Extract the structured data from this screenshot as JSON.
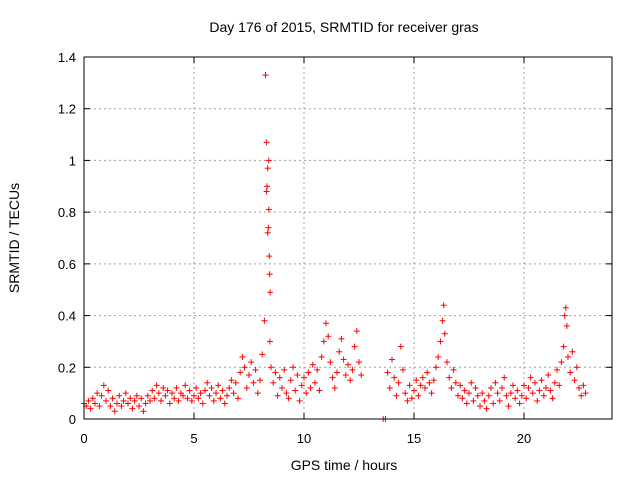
{
  "chart_data": {
    "type": "scatter",
    "title": "Day 176 of 2015, SRMTID for receiver gras",
    "xlabel": "GPS time / hours",
    "ylabel": "SRMTID / TECUs",
    "xlim": [
      0,
      24
    ],
    "ylim": [
      0,
      1.4
    ],
    "x_ticks": [
      0,
      5,
      10,
      15,
      20
    ],
    "x_tick_labels": [
      "0",
      "5",
      "10",
      "15",
      "20"
    ],
    "y_ticks": [
      0,
      0.2,
      0.4,
      0.6,
      0.8,
      1.0,
      1.2,
      1.4
    ],
    "y_tick_labels": [
      "0",
      "0.2",
      "0.4",
      "0.6",
      "0.8",
      "1",
      "1.2",
      "1.4"
    ],
    "grid": true,
    "marker": "+",
    "series": [
      {
        "name": "SRMTID",
        "color": "#ff0000",
        "points": [
          [
            0.0,
            0.06
          ],
          [
            0.1,
            0.05
          ],
          [
            0.2,
            0.07
          ],
          [
            0.3,
            0.04
          ],
          [
            0.4,
            0.08
          ],
          [
            0.5,
            0.06
          ],
          [
            0.6,
            0.1
          ],
          [
            0.7,
            0.05
          ],
          [
            0.8,
            0.09
          ],
          [
            0.9,
            0.13
          ],
          [
            1.0,
            0.07
          ],
          [
            1.1,
            0.11
          ],
          [
            1.2,
            0.05
          ],
          [
            1.3,
            0.08
          ],
          [
            1.4,
            0.03
          ],
          [
            1.5,
            0.06
          ],
          [
            1.6,
            0.09
          ],
          [
            1.7,
            0.05
          ],
          [
            1.8,
            0.07
          ],
          [
            1.9,
            0.1
          ],
          [
            2.0,
            0.06
          ],
          [
            2.1,
            0.08
          ],
          [
            2.2,
            0.04
          ],
          [
            2.3,
            0.07
          ],
          [
            2.4,
            0.09
          ],
          [
            2.5,
            0.05
          ],
          [
            2.6,
            0.08
          ],
          [
            2.7,
            0.03
          ],
          [
            2.8,
            0.06
          ],
          [
            2.9,
            0.09
          ],
          [
            3.0,
            0.07
          ],
          [
            3.1,
            0.11
          ],
          [
            3.2,
            0.08
          ],
          [
            3.3,
            0.13
          ],
          [
            3.4,
            0.1
          ],
          [
            3.5,
            0.07
          ],
          [
            3.6,
            0.12
          ],
          [
            3.7,
            0.09
          ],
          [
            3.8,
            0.11
          ],
          [
            3.9,
            0.06
          ],
          [
            4.0,
            0.1
          ],
          [
            4.1,
            0.08
          ],
          [
            4.2,
            0.12
          ],
          [
            4.3,
            0.07
          ],
          [
            4.4,
            0.1
          ],
          [
            4.5,
            0.09
          ],
          [
            4.6,
            0.13
          ],
          [
            4.7,
            0.08
          ],
          [
            4.8,
            0.11
          ],
          [
            4.9,
            0.07
          ],
          [
            5.0,
            0.09
          ],
          [
            5.1,
            0.12
          ],
          [
            5.2,
            0.08
          ],
          [
            5.3,
            0.1
          ],
          [
            5.4,
            0.06
          ],
          [
            5.5,
            0.11
          ],
          [
            5.6,
            0.14
          ],
          [
            5.7,
            0.09
          ],
          [
            5.8,
            0.12
          ],
          [
            5.9,
            0.07
          ],
          [
            6.0,
            0.1
          ],
          [
            6.1,
            0.13
          ],
          [
            6.2,
            0.08
          ],
          [
            6.3,
            0.11
          ],
          [
            6.4,
            0.06
          ],
          [
            6.5,
            0.09
          ],
          [
            6.6,
            0.12
          ],
          [
            6.7,
            0.15
          ],
          [
            6.8,
            0.1
          ],
          [
            6.9,
            0.14
          ],
          [
            7.0,
            0.08
          ],
          [
            7.1,
            0.18
          ],
          [
            7.2,
            0.24
          ],
          [
            7.3,
            0.2
          ],
          [
            7.4,
            0.12
          ],
          [
            7.5,
            0.17
          ],
          [
            7.6,
            0.22
          ],
          [
            7.7,
            0.14
          ],
          [
            7.8,
            0.19
          ],
          [
            7.9,
            0.1
          ],
          [
            8.0,
            0.15
          ],
          [
            8.1,
            0.25
          ],
          [
            8.2,
            0.38
          ],
          [
            8.25,
            1.33
          ],
          [
            8.3,
            1.07
          ],
          [
            8.32,
            0.9
          ],
          [
            8.35,
            0.97
          ],
          [
            8.38,
            0.74
          ],
          [
            8.4,
            0.81
          ],
          [
            8.42,
            0.63
          ],
          [
            8.44,
            0.56
          ],
          [
            8.46,
            0.49
          ],
          [
            8.3,
            0.88
          ],
          [
            8.35,
            0.72
          ],
          [
            8.4,
            1.0
          ],
          [
            8.45,
            0.3
          ],
          [
            8.5,
            0.2
          ],
          [
            8.6,
            0.14
          ],
          [
            8.7,
            0.18
          ],
          [
            8.8,
            0.09
          ],
          [
            8.9,
            0.16
          ],
          [
            9.0,
            0.12
          ],
          [
            9.1,
            0.19
          ],
          [
            9.2,
            0.1
          ],
          [
            9.3,
            0.08
          ],
          [
            9.4,
            0.15
          ],
          [
            9.5,
            0.2
          ],
          [
            9.6,
            0.11
          ],
          [
            9.7,
            0.17
          ],
          [
            9.8,
            0.07
          ],
          [
            9.9,
            0.13
          ],
          [
            10.0,
            0.16
          ],
          [
            10.1,
            0.1
          ],
          [
            10.2,
            0.18
          ],
          [
            10.3,
            0.12
          ],
          [
            10.4,
            0.21
          ],
          [
            10.5,
            0.14
          ],
          [
            10.6,
            0.19
          ],
          [
            10.7,
            0.11
          ],
          [
            10.8,
            0.24
          ],
          [
            10.9,
            0.3
          ],
          [
            11.0,
            0.37
          ],
          [
            11.1,
            0.32
          ],
          [
            11.2,
            0.22
          ],
          [
            11.3,
            0.16
          ],
          [
            11.4,
            0.12
          ],
          [
            11.5,
            0.18
          ],
          [
            11.6,
            0.26
          ],
          [
            11.7,
            0.31
          ],
          [
            11.8,
            0.23
          ],
          [
            11.9,
            0.17
          ],
          [
            12.0,
            0.21
          ],
          [
            12.1,
            0.15
          ],
          [
            12.2,
            0.19
          ],
          [
            12.3,
            0.28
          ],
          [
            12.4,
            0.34
          ],
          [
            12.5,
            0.22
          ],
          [
            12.6,
            0.17
          ],
          [
            13.6,
            0.0
          ],
          [
            13.7,
            0.0
          ],
          [
            13.8,
            0.18
          ],
          [
            13.9,
            0.12
          ],
          [
            14.0,
            0.23
          ],
          [
            14.1,
            0.16
          ],
          [
            14.2,
            0.09
          ],
          [
            14.3,
            0.14
          ],
          [
            14.4,
            0.28
          ],
          [
            14.5,
            0.19
          ],
          [
            14.6,
            0.1
          ],
          [
            14.7,
            0.07
          ],
          [
            14.8,
            0.13
          ],
          [
            14.9,
            0.08
          ],
          [
            15.0,
            0.11
          ],
          [
            15.1,
            0.15
          ],
          [
            15.2,
            0.09
          ],
          [
            15.3,
            0.13
          ],
          [
            15.4,
            0.16
          ],
          [
            15.5,
            0.12
          ],
          [
            15.6,
            0.18
          ],
          [
            15.7,
            0.14
          ],
          [
            15.8,
            0.1
          ],
          [
            15.9,
            0.15
          ],
          [
            16.0,
            0.2
          ],
          [
            16.1,
            0.24
          ],
          [
            16.2,
            0.3
          ],
          [
            16.3,
            0.38
          ],
          [
            16.35,
            0.44
          ],
          [
            16.4,
            0.33
          ],
          [
            16.5,
            0.22
          ],
          [
            16.6,
            0.16
          ],
          [
            16.7,
            0.12
          ],
          [
            16.8,
            0.19
          ],
          [
            16.9,
            0.14
          ],
          [
            17.0,
            0.09
          ],
          [
            17.1,
            0.13
          ],
          [
            17.2,
            0.08
          ],
          [
            17.3,
            0.11
          ],
          [
            17.4,
            0.06
          ],
          [
            17.5,
            0.1
          ],
          [
            17.6,
            0.14
          ],
          [
            17.7,
            0.07
          ],
          [
            17.8,
            0.12
          ],
          [
            17.9,
            0.09
          ],
          [
            18.0,
            0.05
          ],
          [
            18.1,
            0.1
          ],
          [
            18.2,
            0.07
          ],
          [
            18.3,
            0.04
          ],
          [
            18.4,
            0.09
          ],
          [
            18.5,
            0.12
          ],
          [
            18.6,
            0.06
          ],
          [
            18.7,
            0.14
          ],
          [
            18.8,
            0.1
          ],
          [
            18.9,
            0.07
          ],
          [
            19.0,
            0.12
          ],
          [
            19.1,
            0.16
          ],
          [
            19.2,
            0.09
          ],
          [
            19.3,
            0.05
          ],
          [
            19.4,
            0.1
          ],
          [
            19.5,
            0.13
          ],
          [
            19.6,
            0.08
          ],
          [
            19.7,
            0.11
          ],
          [
            19.8,
            0.06
          ],
          [
            19.9,
            0.09
          ],
          [
            20.0,
            0.13
          ],
          [
            20.1,
            0.08
          ],
          [
            20.2,
            0.12
          ],
          [
            20.3,
            0.16
          ],
          [
            20.4,
            0.1
          ],
          [
            20.5,
            0.14
          ],
          [
            20.6,
            0.07
          ],
          [
            20.7,
            0.11
          ],
          [
            20.8,
            0.15
          ],
          [
            20.9,
            0.09
          ],
          [
            21.0,
            0.12
          ],
          [
            21.1,
            0.17
          ],
          [
            21.2,
            0.11
          ],
          [
            21.3,
            0.08
          ],
          [
            21.4,
            0.14
          ],
          [
            21.5,
            0.19
          ],
          [
            21.6,
            0.13
          ],
          [
            21.7,
            0.22
          ],
          [
            21.8,
            0.28
          ],
          [
            21.85,
            0.4
          ],
          [
            21.9,
            0.43
          ],
          [
            21.95,
            0.36
          ],
          [
            22.0,
            0.24
          ],
          [
            22.1,
            0.18
          ],
          [
            22.2,
            0.26
          ],
          [
            22.3,
            0.15
          ],
          [
            22.4,
            0.2
          ],
          [
            22.5,
            0.12
          ],
          [
            22.6,
            0.09
          ],
          [
            22.7,
            0.13
          ],
          [
            22.8,
            0.1
          ]
        ]
      }
    ]
  }
}
